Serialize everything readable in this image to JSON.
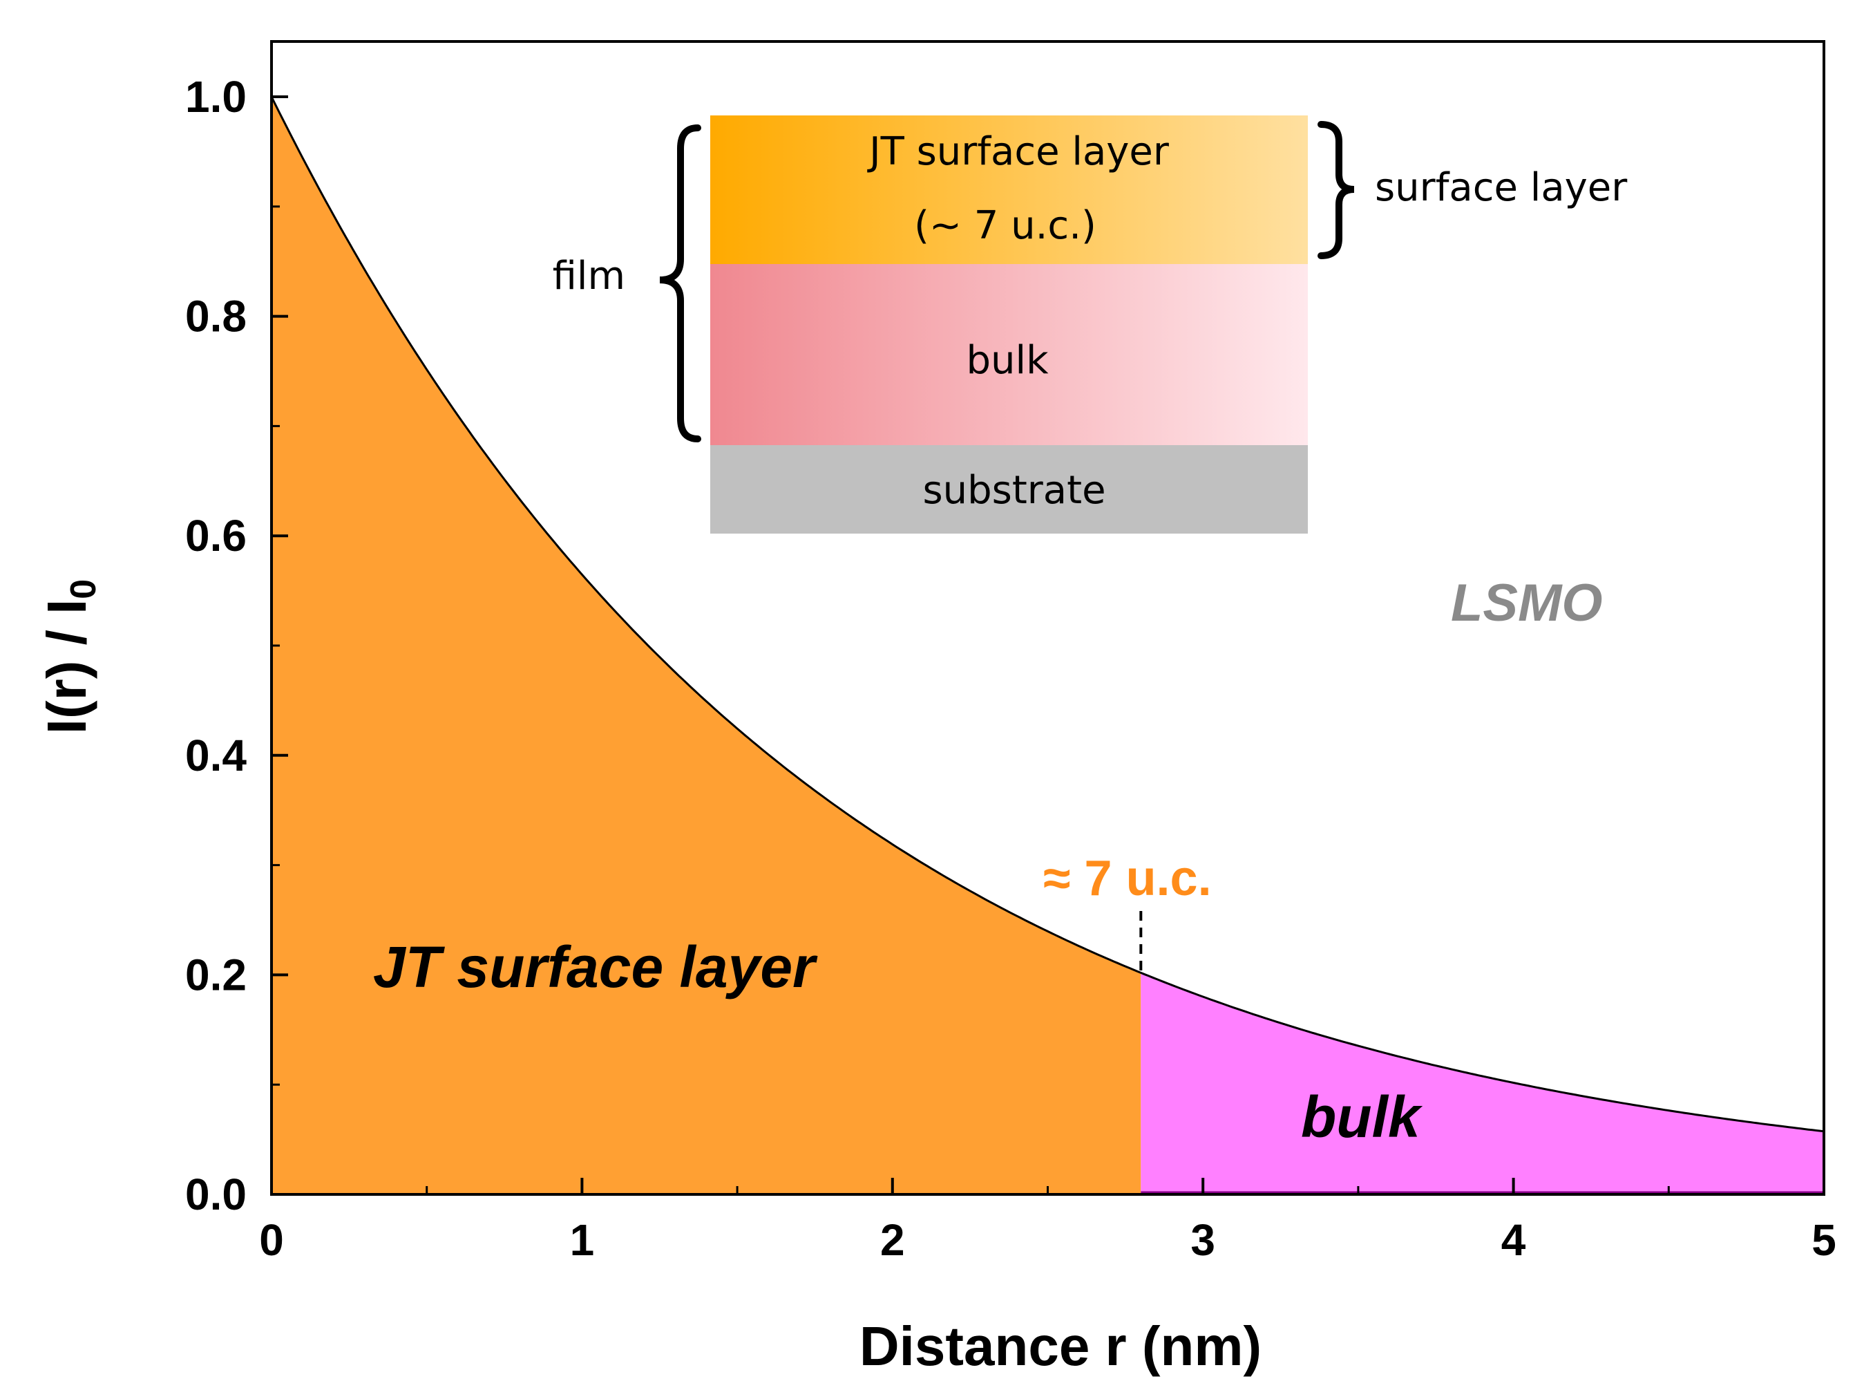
{
  "chart_data": {
    "type": "area",
    "title": "",
    "xlabel": "Distance r (nm)",
    "ylabel_main": "I(r) / I",
    "ylabel_sub": "0",
    "xlim": [
      0,
      5
    ],
    "ylim": [
      0,
      1.0
    ],
    "x_ticks": [
      "0",
      "1",
      "2",
      "3",
      "4",
      "5"
    ],
    "y_ticks": [
      "0.0",
      "0.2",
      "0.4",
      "0.6",
      "0.8",
      "1.0"
    ],
    "function": "I(r)/I0 = exp(-r / 1.75)",
    "decay_length_nm": 1.75,
    "x": [
      0,
      0.5,
      1.0,
      1.5,
      2.0,
      2.5,
      2.8,
      3.0,
      3.5,
      4.0,
      4.5,
      5.0
    ],
    "y": [
      1.0,
      0.75,
      0.565,
      0.424,
      0.319,
      0.24,
      0.202,
      0.18,
      0.135,
      0.102,
      0.076,
      0.057
    ],
    "boundary_x": 2.8,
    "regions": [
      {
        "name": "JT surface layer",
        "x_start": 0,
        "x_end": 2.8,
        "color": "#ffa033"
      },
      {
        "name": "bulk",
        "x_start": 2.8,
        "x_end": 5.0,
        "color": "#ff80ff"
      }
    ],
    "annotations": {
      "boundary_label": "≈ 7 u.c.",
      "material_label": "LSMO"
    },
    "colors": {
      "surface_fill": "#ffa033",
      "bulk_fill": "#ff80ff",
      "bulk_edge": "#8a008a",
      "curve": "#000000",
      "marker_text": "#ff8c1a",
      "material_text": "#8a8a8a"
    }
  },
  "inset": {
    "surface_layer_line1": "JT surface layer",
    "surface_layer_line2": "(~ 7 u.c.)",
    "bulk_label": "bulk",
    "substrate_label": "substrate",
    "film_label": "film",
    "surface_brace_label": "surface layer",
    "colors": {
      "surface_left": "#ffaa00",
      "surface_right": "#ffe0a0",
      "bulk_left": "#f08890",
      "bulk_right": "#ffe8ec",
      "substrate": "#c0c0c0"
    }
  }
}
